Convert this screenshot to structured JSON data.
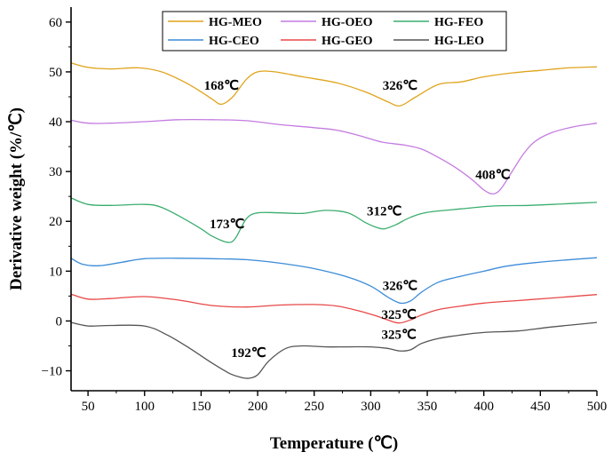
{
  "chart_data": {
    "type": "line",
    "xlabel": "Temperature (℃)",
    "ylabel": "Derivative weight (%/℃)",
    "xlim": [
      35,
      500
    ],
    "ylim": [
      -14,
      63
    ],
    "xticks": [
      50,
      100,
      150,
      200,
      250,
      300,
      350,
      400,
      450,
      500
    ],
    "yticks": [
      -10,
      0,
      10,
      20,
      30,
      40,
      50,
      60
    ],
    "grid": false,
    "legend": {
      "placement": "top-center",
      "columns": 3,
      "entries": [
        "HG-MEO",
        "HG-OEO",
        "HG-FEO",
        "HG-CEO",
        "HG-GEO",
        "HG-LEO"
      ]
    },
    "series": [
      {
        "name": "HG-MEO",
        "color": "#E0A41C",
        "points": [
          [
            35,
            51.8
          ],
          [
            50,
            50.9
          ],
          [
            70,
            50.6
          ],
          [
            95,
            50.8
          ],
          [
            115,
            50.0
          ],
          [
            135,
            48.0
          ],
          [
            150,
            46.0
          ],
          [
            160,
            44.5
          ],
          [
            168,
            43.5
          ],
          [
            178,
            45.0
          ],
          [
            190,
            48.5
          ],
          [
            200,
            50.0
          ],
          [
            215,
            50.0
          ],
          [
            240,
            49.0
          ],
          [
            270,
            47.8
          ],
          [
            295,
            46.0
          ],
          [
            315,
            44.0
          ],
          [
            326,
            43.2
          ],
          [
            340,
            45.0
          ],
          [
            360,
            47.5
          ],
          [
            380,
            48.0
          ],
          [
            400,
            49.0
          ],
          [
            425,
            49.8
          ],
          [
            450,
            50.3
          ],
          [
            475,
            50.8
          ],
          [
            500,
            51.0
          ]
        ]
      },
      {
        "name": "HG-OEO",
        "color": "#C47BE0",
        "points": [
          [
            35,
            40.3
          ],
          [
            50,
            39.7
          ],
          [
            70,
            39.7
          ],
          [
            100,
            40.0
          ],
          [
            130,
            40.4
          ],
          [
            160,
            40.4
          ],
          [
            190,
            40.2
          ],
          [
            220,
            39.4
          ],
          [
            250,
            38.8
          ],
          [
            270,
            38.3
          ],
          [
            290,
            37.2
          ],
          [
            310,
            35.9
          ],
          [
            330,
            35.3
          ],
          [
            345,
            34.5
          ],
          [
            360,
            32.8
          ],
          [
            375,
            30.8
          ],
          [
            390,
            28.3
          ],
          [
            400,
            26.3
          ],
          [
            408,
            25.5
          ],
          [
            415,
            26.5
          ],
          [
            425,
            30.0
          ],
          [
            435,
            33.5
          ],
          [
            445,
            36.0
          ],
          [
            460,
            37.8
          ],
          [
            480,
            39.0
          ],
          [
            500,
            39.7
          ]
        ]
      },
      {
        "name": "HG-FEO",
        "color": "#3AAE6E",
        "points": [
          [
            35,
            24.7
          ],
          [
            50,
            23.4
          ],
          [
            70,
            23.2
          ],
          [
            100,
            23.4
          ],
          [
            115,
            22.8
          ],
          [
            135,
            20.5
          ],
          [
            150,
            18.5
          ],
          [
            160,
            17.0
          ],
          [
            173,
            15.8
          ],
          [
            180,
            16.5
          ],
          [
            190,
            20.5
          ],
          [
            200,
            21.7
          ],
          [
            220,
            21.7
          ],
          [
            240,
            21.6
          ],
          [
            260,
            22.2
          ],
          [
            280,
            21.7
          ],
          [
            295,
            19.8
          ],
          [
            305,
            18.8
          ],
          [
            312,
            18.5
          ],
          [
            322,
            19.3
          ],
          [
            335,
            20.8
          ],
          [
            350,
            21.8
          ],
          [
            380,
            22.5
          ],
          [
            410,
            23.1
          ],
          [
            440,
            23.2
          ],
          [
            470,
            23.5
          ],
          [
            500,
            23.8
          ]
        ]
      },
      {
        "name": "HG-CEO",
        "color": "#3C8CD8",
        "points": [
          [
            35,
            12.6
          ],
          [
            45,
            11.4
          ],
          [
            60,
            11.1
          ],
          [
            80,
            11.8
          ],
          [
            100,
            12.5
          ],
          [
            130,
            12.6
          ],
          [
            160,
            12.5
          ],
          [
            190,
            12.3
          ],
          [
            220,
            11.6
          ],
          [
            250,
            10.5
          ],
          [
            280,
            8.8
          ],
          [
            300,
            7.0
          ],
          [
            315,
            4.8
          ],
          [
            326,
            3.6
          ],
          [
            335,
            4.0
          ],
          [
            345,
            5.8
          ],
          [
            360,
            7.8
          ],
          [
            380,
            9.0
          ],
          [
            400,
            10.0
          ],
          [
            420,
            11.0
          ],
          [
            445,
            11.7
          ],
          [
            470,
            12.2
          ],
          [
            500,
            12.7
          ]
        ]
      },
      {
        "name": "HG-GEO",
        "color": "#E84848",
        "points": [
          [
            35,
            5.4
          ],
          [
            50,
            4.4
          ],
          [
            70,
            4.5
          ],
          [
            100,
            4.9
          ],
          [
            130,
            4.2
          ],
          [
            160,
            3.1
          ],
          [
            190,
            2.8
          ],
          [
            220,
            3.2
          ],
          [
            250,
            3.3
          ],
          [
            270,
            3.0
          ],
          [
            290,
            2.0
          ],
          [
            305,
            1.0
          ],
          [
            315,
            0.2
          ],
          [
            325,
            -0.4
          ],
          [
            335,
            0.2
          ],
          [
            345,
            1.2
          ],
          [
            360,
            2.3
          ],
          [
            380,
            3.0
          ],
          [
            400,
            3.6
          ],
          [
            430,
            4.1
          ],
          [
            460,
            4.6
          ],
          [
            500,
            5.3
          ]
        ]
      },
      {
        "name": "HG-LEO",
        "color": "#555555",
        "points": [
          [
            35,
            -0.3
          ],
          [
            50,
            -1.0
          ],
          [
            70,
            -0.9
          ],
          [
            100,
            -1.0
          ],
          [
            120,
            -2.8
          ],
          [
            140,
            -5.5
          ],
          [
            160,
            -8.5
          ],
          [
            175,
            -10.5
          ],
          [
            185,
            -11.3
          ],
          [
            192,
            -11.5
          ],
          [
            200,
            -10.8
          ],
          [
            210,
            -8.0
          ],
          [
            225,
            -5.5
          ],
          [
            240,
            -5.0
          ],
          [
            260,
            -5.2
          ],
          [
            280,
            -5.2
          ],
          [
            300,
            -5.2
          ],
          [
            315,
            -5.5
          ],
          [
            325,
            -6.0
          ],
          [
            335,
            -5.8
          ],
          [
            345,
            -4.5
          ],
          [
            360,
            -3.5
          ],
          [
            380,
            -2.8
          ],
          [
            400,
            -2.3
          ],
          [
            430,
            -2.0
          ],
          [
            460,
            -1.2
          ],
          [
            500,
            -0.3
          ]
        ]
      }
    ],
    "annotations": [
      {
        "text": "168℃",
        "x": 168,
        "y": 46.4
      },
      {
        "text": "326℃",
        "x": 326,
        "y": 46.4
      },
      {
        "text": "408℃",
        "x": 408,
        "y": 28.5
      },
      {
        "text": "173℃",
        "x": 173,
        "y": 18.6
      },
      {
        "text": "312℃",
        "x": 312,
        "y": 21.2
      },
      {
        "text": "326℃",
        "x": 326,
        "y": 6.2
      },
      {
        "text": "325℃",
        "x": 325,
        "y": 0.4
      },
      {
        "text": "325℃",
        "x": 325,
        "y": -3.6
      },
      {
        "text": "192℃",
        "x": 192,
        "y": -7.2
      }
    ]
  }
}
